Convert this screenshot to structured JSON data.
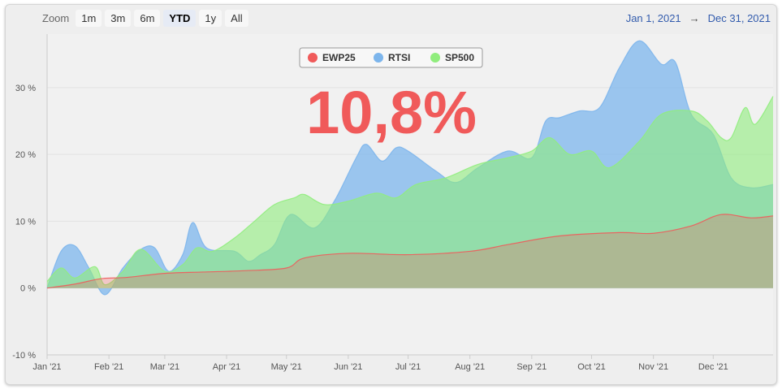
{
  "zoom": {
    "label": "Zoom",
    "buttons": [
      "1m",
      "3m",
      "6m",
      "YTD",
      "1y",
      "All"
    ],
    "active": "YTD"
  },
  "range": {
    "from": "Jan 1, 2021",
    "arrow": "→",
    "to": "Dec 31, 2021"
  },
  "headline": "10,8%",
  "chart_data": {
    "type": "area",
    "x_unit": "date (2021)",
    "y_unit": "%",
    "ylim": [
      -10,
      38
    ],
    "y_ticks": [
      "-10 %",
      "0 %",
      "10 %",
      "20 %",
      "30 %"
    ],
    "y_tick_values": [
      -10,
      0,
      10,
      20,
      30
    ],
    "x_ticks": [
      "Jan '21",
      "Feb '21",
      "Mar '21",
      "Apr '21",
      "May '21",
      "Jun '21",
      "Jul '21",
      "Aug '21",
      "Sep '21",
      "Oct '21",
      "Nov '21",
      "Dec '21"
    ],
    "x_tick_dates": [
      "2021-01-01",
      "2021-02-01",
      "2021-03-01",
      "2021-04-01",
      "2021-05-01",
      "2021-06-01",
      "2021-07-01",
      "2021-08-01",
      "2021-09-01",
      "2021-10-01",
      "2021-11-01",
      "2021-12-01"
    ],
    "x_end": "2021-12-31",
    "grid": true,
    "legend_position": "top-center",
    "series": [
      {
        "name": "EWP25",
        "color": "#f05a5a",
        "points": [
          [
            "2021-01-01",
            0
          ],
          [
            "2021-01-15",
            0.6
          ],
          [
            "2021-01-28",
            1.4
          ],
          [
            "2021-02-10",
            1.6
          ],
          [
            "2021-03-01",
            2.2
          ],
          [
            "2021-03-20",
            2.4
          ],
          [
            "2021-04-10",
            2.6
          ],
          [
            "2021-05-01",
            3.0
          ],
          [
            "2021-05-10",
            4.5
          ],
          [
            "2021-06-01",
            5.2
          ],
          [
            "2021-07-01",
            5.0
          ],
          [
            "2021-08-01",
            5.5
          ],
          [
            "2021-08-20",
            6.5
          ],
          [
            "2021-09-15",
            7.8
          ],
          [
            "2021-10-15",
            8.3
          ],
          [
            "2021-11-01",
            8.2
          ],
          [
            "2021-11-20",
            9.3
          ],
          [
            "2021-12-05",
            11.0
          ],
          [
            "2021-12-20",
            10.5
          ],
          [
            "2021-12-31",
            10.8
          ]
        ]
      },
      {
        "name": "RTSI",
        "color": "#7cb5ec",
        "points": [
          [
            "2021-01-01",
            0
          ],
          [
            "2021-01-08",
            5.5
          ],
          [
            "2021-01-15",
            6.3
          ],
          [
            "2021-01-22",
            3.0
          ],
          [
            "2021-01-30",
            -1.0
          ],
          [
            "2021-02-08",
            3.0
          ],
          [
            "2021-02-17",
            5.8
          ],
          [
            "2021-02-24",
            6.0
          ],
          [
            "2021-03-03",
            2.5
          ],
          [
            "2021-03-10",
            5.0
          ],
          [
            "2021-03-15",
            9.8
          ],
          [
            "2021-03-22",
            6.0
          ],
          [
            "2021-04-05",
            5.5
          ],
          [
            "2021-04-12",
            4.0
          ],
          [
            "2021-04-18",
            5.0
          ],
          [
            "2021-04-25",
            6.5
          ],
          [
            "2021-05-03",
            11.0
          ],
          [
            "2021-05-15",
            9.0
          ],
          [
            "2021-05-25",
            13.0
          ],
          [
            "2021-06-05",
            19.5
          ],
          [
            "2021-06-10",
            21.5
          ],
          [
            "2021-06-18",
            19.0
          ],
          [
            "2021-06-25",
            21.0
          ],
          [
            "2021-07-01",
            20.5
          ],
          [
            "2021-07-15",
            17.5
          ],
          [
            "2021-07-25",
            15.8
          ],
          [
            "2021-08-05",
            18.0
          ],
          [
            "2021-08-20",
            20.5
          ],
          [
            "2021-09-01",
            19.5
          ],
          [
            "2021-09-08",
            25.0
          ],
          [
            "2021-09-15",
            25.5
          ],
          [
            "2021-09-25",
            26.5
          ],
          [
            "2021-10-05",
            27.0
          ],
          [
            "2021-10-15",
            33.0
          ],
          [
            "2021-10-25",
            37.0
          ],
          [
            "2021-11-05",
            33.5
          ],
          [
            "2021-11-12",
            33.8
          ],
          [
            "2021-11-20",
            26.0
          ],
          [
            "2021-12-01",
            23.0
          ],
          [
            "2021-12-10",
            16.5
          ],
          [
            "2021-12-20",
            15.0
          ],
          [
            "2021-12-31",
            15.5
          ]
        ]
      },
      {
        "name": "SP500",
        "color": "#90ed7d",
        "points": [
          [
            "2021-01-01",
            1.0
          ],
          [
            "2021-01-08",
            3.0
          ],
          [
            "2021-01-15",
            1.5
          ],
          [
            "2021-01-25",
            3.2
          ],
          [
            "2021-01-30",
            0.5
          ],
          [
            "2021-02-08",
            2.5
          ],
          [
            "2021-02-17",
            5.8
          ],
          [
            "2021-03-01",
            2.5
          ],
          [
            "2021-03-10",
            3.5
          ],
          [
            "2021-03-17",
            6.0
          ],
          [
            "2021-03-25",
            5.5
          ],
          [
            "2021-04-05",
            7.5
          ],
          [
            "2021-04-15",
            10.0
          ],
          [
            "2021-04-25",
            12.5
          ],
          [
            "2021-05-05",
            13.5
          ],
          [
            "2021-05-10",
            14.0
          ],
          [
            "2021-05-20",
            12.5
          ],
          [
            "2021-06-01",
            13.0
          ],
          [
            "2021-06-15",
            14.2
          ],
          [
            "2021-06-25",
            13.5
          ],
          [
            "2021-07-05",
            15.5
          ],
          [
            "2021-07-20",
            16.5
          ],
          [
            "2021-08-05",
            18.5
          ],
          [
            "2021-08-20",
            19.5
          ],
          [
            "2021-09-01",
            20.5
          ],
          [
            "2021-09-10",
            22.5
          ],
          [
            "2021-09-20",
            20.0
          ],
          [
            "2021-10-01",
            20.5
          ],
          [
            "2021-10-10",
            18.0
          ],
          [
            "2021-10-25",
            22.0
          ],
          [
            "2021-11-05",
            26.0
          ],
          [
            "2021-11-20",
            26.5
          ],
          [
            "2021-11-28",
            25.0
          ],
          [
            "2021-12-05",
            22.5
          ],
          [
            "2021-12-10",
            22.5
          ],
          [
            "2021-12-17",
            27.0
          ],
          [
            "2021-12-22",
            24.5
          ],
          [
            "2021-12-31",
            28.7
          ]
        ]
      }
    ]
  }
}
